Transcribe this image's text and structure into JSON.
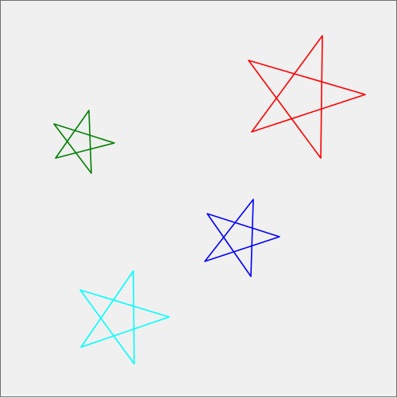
{
  "stars": [
    {
      "name": "star-red",
      "color": "#ff0000"
    },
    {
      "name": "star-green",
      "color": "#008000"
    },
    {
      "name": "star-blue",
      "color": "#0000ff"
    },
    {
      "name": "star-cyan",
      "color": "#00ffff"
    }
  ]
}
